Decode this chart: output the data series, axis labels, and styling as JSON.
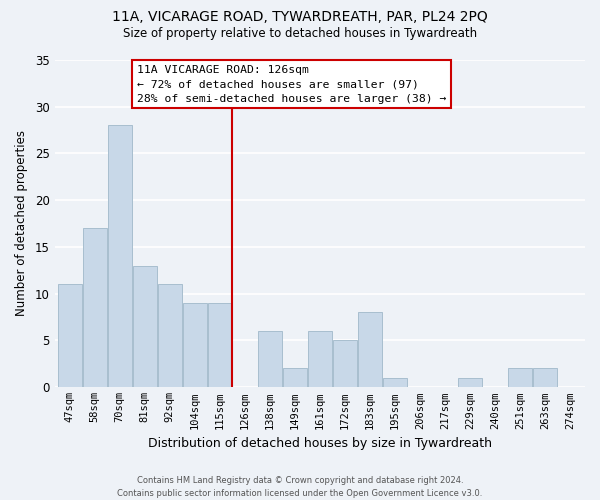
{
  "title": "11A, VICARAGE ROAD, TYWARDREATH, PAR, PL24 2PQ",
  "subtitle": "Size of property relative to detached houses in Tywardreath",
  "xlabel": "Distribution of detached houses by size in Tywardreath",
  "ylabel": "Number of detached properties",
  "bar_labels": [
    "47sqm",
    "58sqm",
    "70sqm",
    "81sqm",
    "92sqm",
    "104sqm",
    "115sqm",
    "126sqm",
    "138sqm",
    "149sqm",
    "161sqm",
    "172sqm",
    "183sqm",
    "195sqm",
    "206sqm",
    "217sqm",
    "229sqm",
    "240sqm",
    "251sqm",
    "263sqm",
    "274sqm"
  ],
  "bar_values": [
    11,
    17,
    28,
    13,
    11,
    9,
    9,
    0,
    6,
    2,
    6,
    5,
    8,
    1,
    0,
    0,
    1,
    0,
    2,
    2,
    0
  ],
  "bar_color": "#c8d8e8",
  "bar_edge_color": "#a8bece",
  "vline_color": "#cc0000",
  "ylim": [
    0,
    35
  ],
  "yticks": [
    0,
    5,
    10,
    15,
    20,
    25,
    30,
    35
  ],
  "annotation_title": "11A VICARAGE ROAD: 126sqm",
  "annotation_line1": "← 72% of detached houses are smaller (97)",
  "annotation_line2": "28% of semi-detached houses are larger (38) →",
  "annotation_box_color": "#ffffff",
  "annotation_border_color": "#cc0000",
  "footer_line1": "Contains HM Land Registry data © Crown copyright and database right 2024.",
  "footer_line2": "Contains public sector information licensed under the Open Government Licence v3.0.",
  "background_color": "#eef2f7",
  "grid_color": "#ffffff"
}
